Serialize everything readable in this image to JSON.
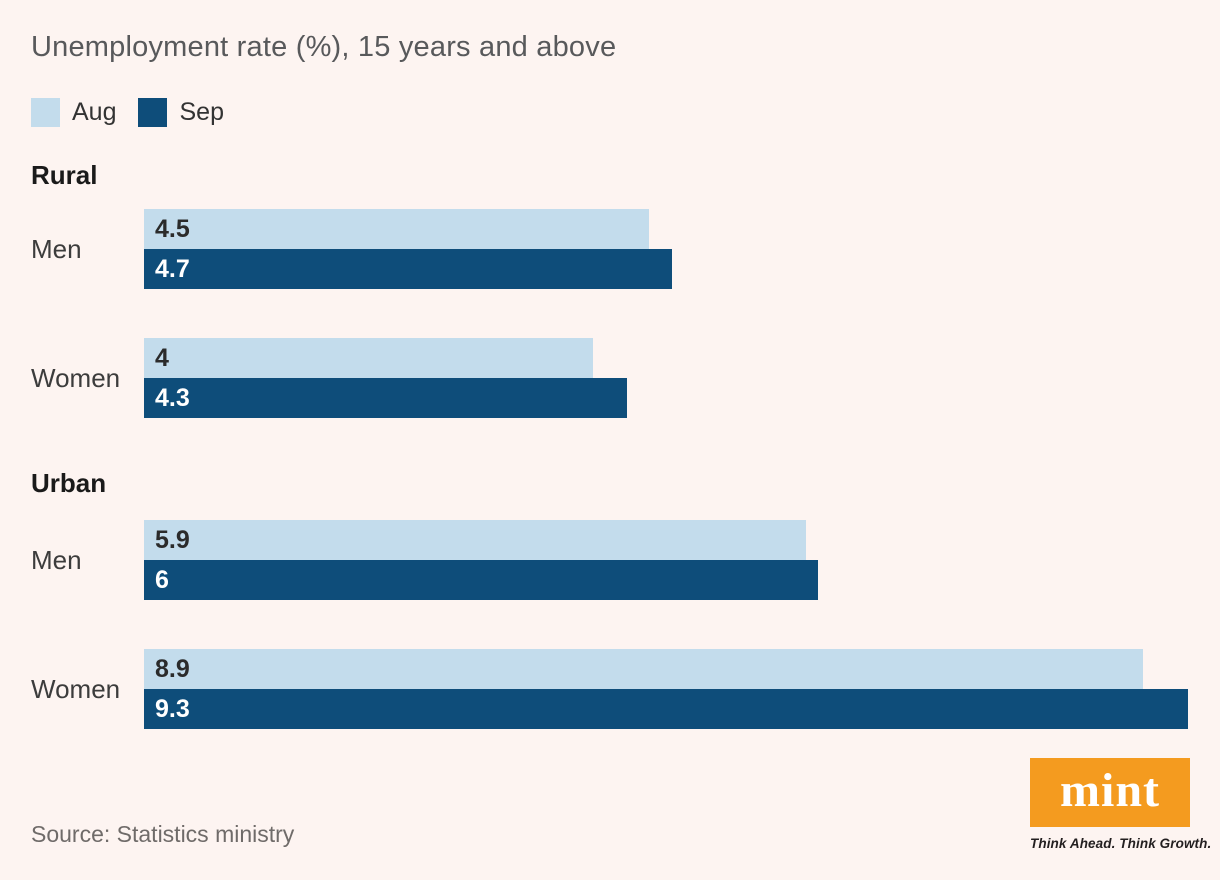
{
  "title": "Unemployment rate (%), 15 years and above",
  "legend": {
    "aug_label": "Aug",
    "sep_label": "Sep"
  },
  "colors": {
    "background": "#fdf4f1",
    "aug": "#c3dcec",
    "sep": "#0e4d7a",
    "logo_orange": "#f49b1f"
  },
  "source": "Source: Statistics ministry",
  "logo": {
    "word": "mint",
    "tagline": "Think Ahead. Think Growth."
  },
  "chart_data": {
    "type": "bar",
    "orientation": "horizontal",
    "title": "Unemployment rate (%), 15 years and above",
    "series_names": [
      "Aug",
      "Sep"
    ],
    "xlim": [
      0,
      9.3
    ],
    "grid": false,
    "legend_position": "top-left",
    "groups": [
      {
        "section": "Rural",
        "rows": [
          {
            "label": "Men",
            "aug": {
              "v": 4.5,
              "text": "4.5"
            },
            "sep": {
              "v": 4.7,
              "text": "4.7"
            }
          },
          {
            "label": "Women",
            "aug": {
              "v": 4.0,
              "text": "4"
            },
            "sep": {
              "v": 4.3,
              "text": "4.3"
            }
          }
        ]
      },
      {
        "section": "Urban",
        "rows": [
          {
            "label": "Men",
            "aug": {
              "v": 5.9,
              "text": "5.9"
            },
            "sep": {
              "v": 6.0,
              "text": "6"
            }
          },
          {
            "label": "Women",
            "aug": {
              "v": 8.9,
              "text": "8.9"
            },
            "sep": {
              "v": 9.3,
              "text": "9.3"
            }
          }
        ]
      }
    ]
  }
}
